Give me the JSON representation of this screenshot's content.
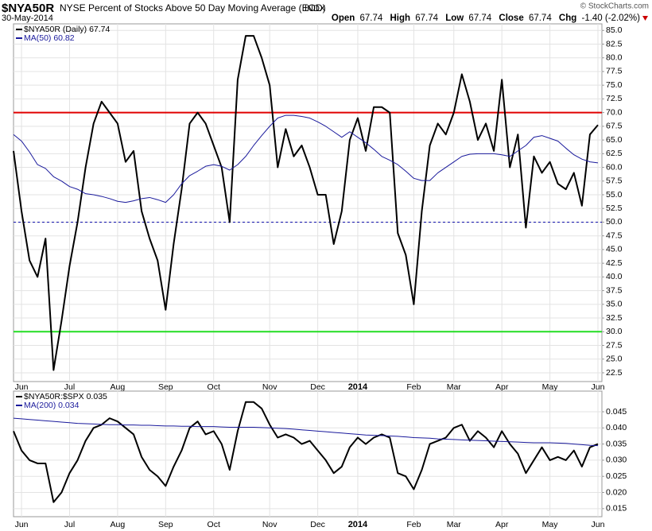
{
  "header": {
    "symbol": "$NYA50R",
    "name": "NYSE Percent of Stocks Above 50 Day Moving Average (EOD)",
    "exchange": "INDX",
    "date": "30-May-2014",
    "copyright": "© StockCharts.com",
    "quote": {
      "open_label": "Open",
      "open": 67.74,
      "high_label": "High",
      "high": 67.74,
      "low_label": "Low",
      "low": 67.74,
      "close_label": "Close",
      "close": 67.74,
      "change_label": "Chg",
      "change": "-1.40 (-2.02%)"
    }
  },
  "chart_data": [
    {
      "type": "line",
      "categories": [
        null,
        "Jun",
        null,
        null,
        null,
        null,
        null,
        "Jul",
        null,
        null,
        null,
        null,
        null,
        "Aug",
        null,
        null,
        null,
        null,
        null,
        "Sep",
        null,
        null,
        null,
        null,
        null,
        "Oct",
        null,
        null,
        null,
        null,
        null,
        null,
        "Nov",
        null,
        null,
        null,
        null,
        null,
        "Dec",
        null,
        null,
        null,
        null,
        "2014",
        null,
        null,
        null,
        null,
        null,
        null,
        "Feb",
        null,
        null,
        null,
        null,
        "Mar",
        null,
        null,
        null,
        null,
        null,
        "Apr",
        null,
        null,
        null,
        null,
        null,
        "May",
        null,
        null,
        null,
        null,
        null,
        "Jun"
      ],
      "series": [
        {
          "name": "$NYA50R (Daily) 67.74",
          "color": "#000000",
          "width": 2,
          "values": [
            63,
            52,
            43,
            40,
            47,
            23,
            32,
            42,
            50,
            60,
            68,
            72,
            70,
            68,
            61,
            63,
            52,
            47,
            43,
            34,
            46,
            56,
            68,
            70,
            68,
            64,
            60,
            50,
            76,
            84,
            84,
            80,
            75,
            60,
            67,
            62,
            64,
            60,
            55,
            55,
            46,
            52,
            65,
            69,
            63,
            71,
            71,
            70,
            48,
            44,
            35,
            52,
            64,
            68,
            66,
            70,
            77,
            72,
            65,
            68,
            63,
            76,
            60,
            66,
            49,
            62,
            59,
            61,
            57,
            56,
            59,
            53,
            66,
            67.74
          ]
        },
        {
          "name": "MA(50) 60.82",
          "color": "#1a1a9c",
          "width": 1,
          "values": [
            66,
            64.8,
            62.8,
            60.5,
            59.8,
            58.3,
            57.5,
            56.5,
            56,
            55.2,
            55,
            54.7,
            54.3,
            53.8,
            53.6,
            53.9,
            54.3,
            54.5,
            54.1,
            53.6,
            55,
            57,
            58.5,
            59.3,
            60.2,
            60.5,
            60.2,
            59.5,
            60.5,
            62,
            64,
            65.8,
            67.5,
            69,
            69.5,
            69.5,
            69.3,
            69,
            68.3,
            67.5,
            66.5,
            65.5,
            66.5,
            65.5,
            64.5,
            63.3,
            62,
            61.3,
            60.5,
            59.3,
            58,
            57.6,
            57.6,
            59,
            60,
            61,
            62,
            62.4,
            62.5,
            62.5,
            62.5,
            62.3,
            62,
            63,
            64,
            65.5,
            65.8,
            65.3,
            64.8,
            63.5,
            62.3,
            61.5,
            61,
            60.82
          ]
        }
      ],
      "reference_lines": [
        {
          "value": 70,
          "color": "#e00000",
          "style": "solid"
        },
        {
          "value": 50,
          "color": "#1111aa",
          "style": "dashed"
        },
        {
          "value": 30,
          "color": "#22dd22",
          "style": "solid"
        }
      ],
      "ylim": [
        20.9,
        86.2
      ],
      "yticks": [
        22.5,
        {
          "value": 25,
          "label": "25.0"
        },
        27.5,
        {
          "value": 30,
          "label": "30.0"
        },
        32.5,
        {
          "value": 35,
          "label": "35.0"
        },
        37.5,
        {
          "value": 40,
          "label": "40.0"
        },
        42.5,
        {
          "value": 45,
          "label": "45.0"
        },
        47.5,
        {
          "value": 50,
          "label": "50.0"
        },
        52.5,
        {
          "value": 55,
          "label": "55.0"
        },
        57.5,
        {
          "value": 60,
          "label": "60.0"
        },
        62.5,
        {
          "value": 65,
          "label": "65.0"
        },
        67.5,
        {
          "value": 70,
          "label": "70.0"
        },
        72.5,
        {
          "value": 75,
          "label": "75.0"
        },
        77.5,
        {
          "value": 80,
          "label": "80.0"
        },
        82.5,
        {
          "value": 85,
          "label": "85.0"
        }
      ],
      "grid": true
    },
    {
      "type": "line",
      "categories": [
        null,
        "Jun",
        null,
        null,
        null,
        null,
        null,
        "Jul",
        null,
        null,
        null,
        null,
        null,
        "Aug",
        null,
        null,
        null,
        null,
        null,
        "Sep",
        null,
        null,
        null,
        null,
        null,
        "Oct",
        null,
        null,
        null,
        null,
        null,
        null,
        "Nov",
        null,
        null,
        null,
        null,
        null,
        "Dec",
        null,
        null,
        null,
        null,
        "2014",
        null,
        null,
        null,
        null,
        null,
        null,
        "Feb",
        null,
        null,
        null,
        null,
        "Mar",
        null,
        null,
        null,
        null,
        null,
        "Apr",
        null,
        null,
        null,
        null,
        null,
        "May",
        null,
        null,
        null,
        null,
        null,
        "Jun"
      ],
      "series": [
        {
          "name": "$NYA50R:$SPX 0.035",
          "color": "#000000",
          "width": 2,
          "values": [
            0.039,
            0.033,
            0.03,
            0.029,
            0.029,
            0.017,
            0.02,
            0.026,
            0.03,
            0.036,
            0.04,
            0.041,
            0.043,
            0.042,
            0.04,
            0.038,
            0.031,
            0.027,
            0.025,
            0.022,
            0.028,
            0.033,
            0.04,
            0.042,
            0.038,
            0.039,
            0.035,
            0.027,
            0.039,
            0.048,
            0.048,
            0.046,
            0.041,
            0.037,
            0.038,
            0.037,
            0.035,
            0.036,
            0.033,
            0.03,
            0.026,
            0.028,
            0.034,
            0.037,
            0.035,
            0.037,
            0.038,
            0.037,
            0.026,
            0.025,
            0.021,
            0.027,
            0.035,
            0.036,
            0.037,
            0.04,
            0.041,
            0.036,
            0.039,
            0.037,
            0.034,
            0.039,
            0.035,
            0.032,
            0.026,
            0.03,
            0.034,
            0.03,
            0.031,
            0.03,
            0.033,
            0.028,
            0.034,
            0.035
          ]
        },
        {
          "name": "MA(200) 0.034",
          "color": "#1a1a9c",
          "width": 1,
          "values": [
            0.043,
            0.0428,
            0.0426,
            0.0424,
            0.0422,
            0.042,
            0.0418,
            0.0416,
            0.0414,
            0.0413,
            0.0412,
            0.0411,
            0.041,
            0.041,
            0.0409,
            0.0409,
            0.0408,
            0.0408,
            0.0407,
            0.0406,
            0.0406,
            0.0405,
            0.0405,
            0.0404,
            0.0404,
            0.0404,
            0.0403,
            0.0402,
            0.0402,
            0.0402,
            0.0402,
            0.0401,
            0.04,
            0.0399,
            0.0398,
            0.0396,
            0.0394,
            0.0392,
            0.039,
            0.0388,
            0.0386,
            0.0384,
            0.0382,
            0.038,
            0.0378,
            0.0377,
            0.0376,
            0.0375,
            0.0374,
            0.0372,
            0.037,
            0.0369,
            0.0368,
            0.0366,
            0.0365,
            0.0364,
            0.0363,
            0.0362,
            0.0361,
            0.036,
            0.0359,
            0.0358,
            0.0357,
            0.0356,
            0.0355,
            0.0354,
            0.0354,
            0.0354,
            0.0353,
            0.0352,
            0.035,
            0.0348,
            0.0346,
            0.0345
          ]
        }
      ],
      "ylim": [
        0.0125,
        0.0514
      ],
      "yticks": [
        0.015,
        {
          "value": 0.02,
          "label": "0.020"
        },
        0.025,
        {
          "value": 0.03,
          "label": "0.030"
        },
        0.035,
        {
          "value": 0.04,
          "label": "0.040"
        },
        0.045
      ],
      "grid": true
    }
  ]
}
